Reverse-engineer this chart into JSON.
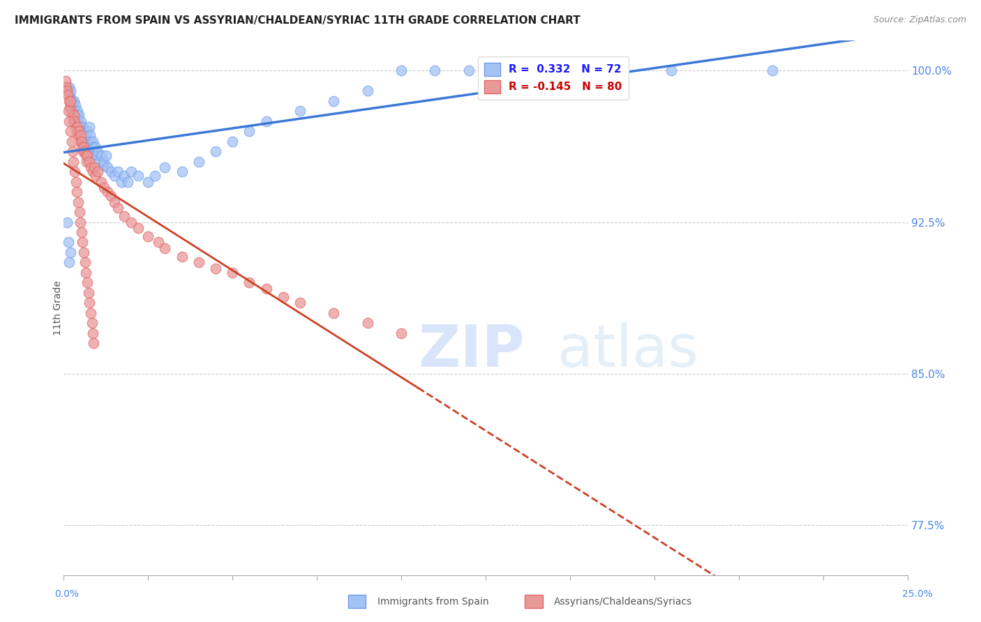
{
  "title": "IMMIGRANTS FROM SPAIN VS ASSYRIAN/CHALDEAN/SYRIAC 11TH GRADE CORRELATION CHART",
  "source": "Source: ZipAtlas.com",
  "ylabel": "11th Grade",
  "xmin": 0.0,
  "xmax": 25.0,
  "ymin": 75.0,
  "ymax": 101.5,
  "yticks": [
    77.5,
    85.0,
    92.5,
    100.0
  ],
  "ytick_labels": [
    "77.5%",
    "85.0%",
    "92.5%",
    "100.0%"
  ],
  "color_blue": "#a4c2f4",
  "color_pink": "#ea9999",
  "color_blue_edge": "#6d9eeb",
  "color_pink_edge": "#e06666",
  "color_blue_line": "#3c78d8",
  "color_pink_line": "#cc4125",
  "color_right_axis": "#4a86e8",
  "watermark_zip": "ZIP",
  "watermark_atlas": "atlas",
  "blue_x": [
    0.15,
    0.18,
    0.2,
    0.22,
    0.25,
    0.28,
    0.3,
    0.32,
    0.35,
    0.38,
    0.4,
    0.42,
    0.45,
    0.48,
    0.5,
    0.52,
    0.55,
    0.58,
    0.6,
    0.62,
    0.65,
    0.68,
    0.7,
    0.72,
    0.75,
    0.78,
    0.8,
    0.82,
    0.85,
    0.88,
    0.9,
    0.92,
    0.95,
    0.98,
    1.0,
    1.05,
    1.1,
    1.15,
    1.2,
    1.25,
    1.3,
    1.4,
    1.5,
    1.6,
    1.7,
    1.8,
    1.9,
    2.0,
    2.2,
    2.5,
    2.7,
    3.0,
    3.5,
    4.0,
    4.5,
    5.0,
    5.5,
    6.0,
    7.0,
    8.0,
    9.0,
    10.0,
    11.0,
    12.0,
    14.0,
    16.0,
    18.0,
    21.0,
    0.1,
    0.13,
    0.16,
    0.19
  ],
  "blue_y": [
    99.2,
    98.8,
    99.0,
    98.6,
    98.5,
    98.2,
    98.5,
    98.0,
    98.3,
    97.8,
    98.0,
    97.5,
    97.8,
    97.2,
    97.5,
    97.0,
    97.2,
    96.8,
    97.0,
    96.5,
    96.8,
    96.3,
    97.0,
    96.5,
    97.2,
    96.8,
    96.5,
    96.0,
    96.5,
    96.2,
    96.0,
    95.8,
    96.2,
    95.8,
    96.0,
    95.5,
    95.8,
    95.3,
    95.5,
    95.8,
    95.2,
    95.0,
    94.8,
    95.0,
    94.5,
    94.8,
    94.5,
    95.0,
    94.8,
    94.5,
    94.8,
    95.2,
    95.0,
    95.5,
    96.0,
    96.5,
    97.0,
    97.5,
    98.0,
    98.5,
    99.0,
    100.0,
    100.0,
    100.0,
    100.0,
    100.0,
    100.0,
    100.0,
    92.5,
    91.5,
    90.5,
    91.0
  ],
  "pink_x": [
    0.05,
    0.08,
    0.1,
    0.12,
    0.15,
    0.18,
    0.2,
    0.22,
    0.25,
    0.28,
    0.3,
    0.32,
    0.35,
    0.38,
    0.4,
    0.42,
    0.45,
    0.48,
    0.5,
    0.52,
    0.55,
    0.58,
    0.6,
    0.62,
    0.65,
    0.68,
    0.7,
    0.75,
    0.8,
    0.85,
    0.9,
    0.95,
    1.0,
    1.1,
    1.2,
    1.3,
    1.4,
    1.5,
    1.6,
    1.8,
    2.0,
    2.2,
    2.5,
    2.8,
    3.0,
    3.5,
    4.0,
    4.5,
    5.0,
    5.5,
    6.0,
    6.5,
    7.0,
    8.0,
    9.0,
    10.0,
    0.13,
    0.16,
    0.19,
    0.23,
    0.26,
    0.29,
    0.33,
    0.36,
    0.39,
    0.43,
    0.46,
    0.49,
    0.53,
    0.56,
    0.59,
    0.63,
    0.66,
    0.69,
    0.73,
    0.76,
    0.79,
    0.83,
    0.86,
    0.89
  ],
  "pink_y": [
    99.5,
    99.2,
    99.0,
    98.8,
    98.5,
    98.2,
    98.5,
    98.0,
    97.8,
    97.5,
    97.8,
    97.5,
    97.2,
    97.0,
    97.2,
    96.8,
    97.0,
    96.5,
    96.8,
    96.5,
    96.2,
    96.0,
    96.2,
    96.0,
    95.8,
    95.5,
    95.8,
    95.5,
    95.2,
    95.0,
    95.2,
    94.8,
    95.0,
    94.5,
    94.2,
    94.0,
    93.8,
    93.5,
    93.2,
    92.8,
    92.5,
    92.2,
    91.8,
    91.5,
    91.2,
    90.8,
    90.5,
    90.2,
    90.0,
    89.5,
    89.2,
    88.8,
    88.5,
    88.0,
    87.5,
    87.0,
    98.0,
    97.5,
    97.0,
    96.5,
    96.0,
    95.5,
    95.0,
    94.5,
    94.0,
    93.5,
    93.0,
    92.5,
    92.0,
    91.5,
    91.0,
    90.5,
    90.0,
    89.5,
    89.0,
    88.5,
    88.0,
    87.5,
    87.0,
    86.5
  ]
}
